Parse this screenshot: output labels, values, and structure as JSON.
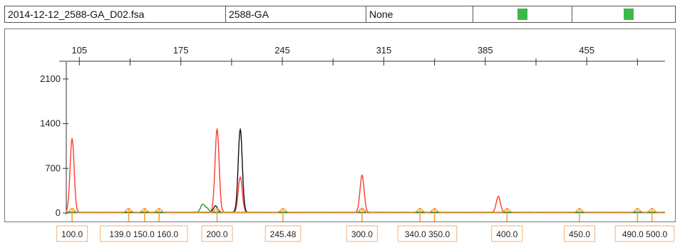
{
  "header": {
    "file_name": "2014-12-12_2588-GA_D02.fsa",
    "sample_name": "2588-GA",
    "panel": "None",
    "dye_colors": [
      "#3cb94a",
      "#3cb94a"
    ]
  },
  "chart_data": {
    "type": "line",
    "title": "",
    "xlabel": "",
    "ylabel": "",
    "top_axis_ticks": [
      105,
      175,
      245,
      315,
      385,
      455
    ],
    "y_ticks": [
      0,
      700,
      1400,
      2100
    ],
    "ylim": [
      0,
      2300
    ],
    "size_markers": [
      {
        "label": "100.0",
        "x": 100.0
      },
      {
        "label": "139.0",
        "x": 139.0
      },
      {
        "label": "150.0",
        "x": 150.0
      },
      {
        "label": "160.0",
        "x": 160.0
      },
      {
        "label": "200.0",
        "x": 200.0
      },
      {
        "label": "245.48",
        "x": 245.48
      },
      {
        "label": "300.0",
        "x": 300.0
      },
      {
        "label": "340.0",
        "x": 340.0
      },
      {
        "label": "350.0",
        "x": 350.0
      },
      {
        "label": "400.0",
        "x": 400.0
      },
      {
        "label": "450.0",
        "x": 450.0
      },
      {
        "label": "490.0",
        "x": 490.0
      },
      {
        "label": "500.0",
        "x": 500.0
      }
    ],
    "series": [
      {
        "color": "#ff3b2f",
        "peaks": [
          {
            "x": 100,
            "y": 1150
          },
          {
            "x": 200,
            "y": 1300
          },
          {
            "x": 216,
            "y": 550
          },
          {
            "x": 300,
            "y": 580
          },
          {
            "x": 394,
            "y": 250
          }
        ]
      },
      {
        "color": "#111111",
        "peaks": [
          {
            "x": 216,
            "y": 1300
          },
          {
            "x": 199,
            "y": 100
          },
          {
            "x": 300,
            "y": 60
          }
        ]
      },
      {
        "color": "#1a9a2a",
        "peaks": [
          {
            "x": 190,
            "y": 120
          },
          {
            "x": 193,
            "y": 60
          }
        ]
      },
      {
        "color": "#ff9a2a",
        "peaks": [
          {
            "x": 100,
            "y": 60
          },
          {
            "x": 139,
            "y": 60
          },
          {
            "x": 150,
            "y": 60
          },
          {
            "x": 160,
            "y": 60
          },
          {
            "x": 200,
            "y": 60
          },
          {
            "x": 245.48,
            "y": 60
          },
          {
            "x": 300,
            "y": 60
          },
          {
            "x": 340,
            "y": 60
          },
          {
            "x": 350,
            "y": 60
          },
          {
            "x": 400,
            "y": 60
          },
          {
            "x": 450,
            "y": 60
          },
          {
            "x": 490,
            "y": 60
          },
          {
            "x": 500,
            "y": 60
          }
        ]
      }
    ]
  }
}
